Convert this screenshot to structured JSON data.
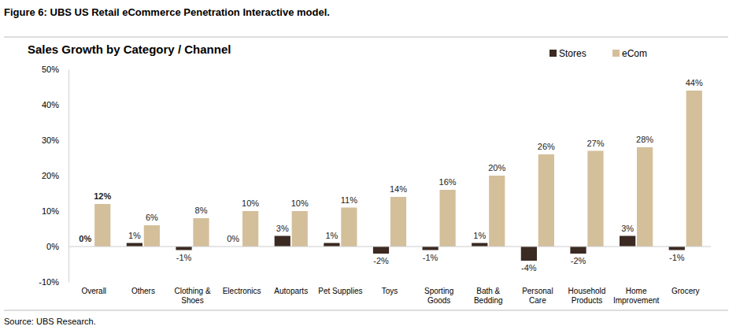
{
  "figure_title": "Figure 6: UBS US Retail eCommerce Penetration Interactive model.",
  "source": "Source:  UBS Research.",
  "chart_data": {
    "type": "bar",
    "title": "Sales Growth by Category / Channel",
    "categories": [
      "Overall",
      "Others",
      "Clothing &\nShoes",
      "Electronics",
      "Autoparts",
      "Pet Supplies",
      "Toys",
      "Sporting\nGoods",
      "Bath &\nBedding",
      "Personal\nCare",
      "Household\nProducts",
      "Home\nImprovement",
      "Grocery"
    ],
    "series": [
      {
        "name": "Stores",
        "color": "#3b2a22",
        "values": [
          0,
          1,
          -1,
          0,
          3,
          1,
          -2,
          -1,
          1,
          -4,
          -2,
          3,
          -1
        ],
        "value_labels": [
          "0%",
          "1%",
          "-1%",
          "0%",
          "3%",
          "1%",
          "-2%",
          "-1%",
          "1%",
          "-4%",
          "-2%",
          "3%",
          "-1%"
        ]
      },
      {
        "name": "eCom",
        "color": "#d4bf9b",
        "values": [
          12,
          6,
          8,
          10,
          10,
          11,
          14,
          16,
          20,
          26,
          27,
          28,
          44
        ],
        "value_labels": [
          "12%",
          "6%",
          "8%",
          "10%",
          "10%",
          "11%",
          "14%",
          "16%",
          "20%",
          "26%",
          "27%",
          "28%",
          "44%"
        ]
      }
    ],
    "ylim": [
      -10,
      50
    ],
    "yticks": [
      {
        "value": -10,
        "label": "-10%"
      },
      {
        "value": 0,
        "label": "0%"
      },
      {
        "value": 10,
        "label": "10%"
      },
      {
        "value": 20,
        "label": "20%"
      },
      {
        "value": 30,
        "label": "30%"
      },
      {
        "value": 40,
        "label": "40%"
      },
      {
        "value": 50,
        "label": "50%"
      }
    ],
    "grid": false,
    "legend": "top right",
    "data_labels": true
  }
}
